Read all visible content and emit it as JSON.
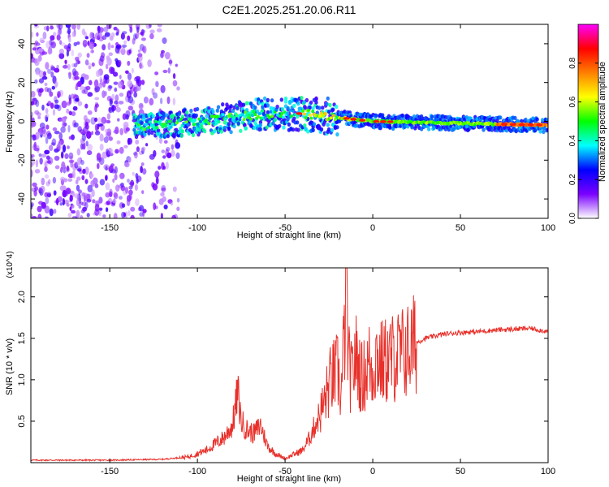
{
  "figure_title": "C2E1.2025.251.20.06.R11",
  "chart_data": [
    {
      "type": "heatmap",
      "title": "C2E1.2025.251.20.06.R11",
      "xlabel": "Height of straight line (km)",
      "ylabel": "Frequency (Hz)",
      "xlim": [
        -195,
        100
      ],
      "ylim": [
        -50,
        50
      ],
      "x_ticks": [
        -150,
        -100,
        -50,
        0,
        50,
        100
      ],
      "x_tick_labels": [
        "-150",
        "-100",
        "-50",
        "0",
        "50",
        "100"
      ],
      "y_ticks": [
        -40,
        -20,
        0,
        20,
        40
      ],
      "y_tick_labels": [
        "-40",
        "-20",
        "0",
        "20",
        "40"
      ],
      "grid": false,
      "colorbar": {
        "label": "Normalized spectral amplitude",
        "range": [
          0,
          1
        ],
        "ticks": [
          0.0,
          0.2,
          0.4,
          0.6,
          0.8
        ],
        "tick_labels": [
          "0.0",
          "0.2",
          "0.4",
          "0.6",
          "0.8"
        ],
        "colormap": [
          "#ffffff",
          "#7a00ff",
          "#0000ff",
          "#00ffff",
          "#00ff00",
          "#ffff00",
          "#ff8000",
          "#ff0000",
          "#ff00ff"
        ]
      },
      "ridge": {
        "description_points_km": [
          -135,
          -100,
          -60,
          -40,
          -20,
          0,
          50,
          100
        ],
        "center_freq_hz": [
          -3,
          0,
          4,
          4,
          2,
          0,
          -1,
          -2
        ]
      }
    },
    {
      "type": "line",
      "xlabel": "Height of straight line (km)",
      "ylabel": "SNR (10 * v/v)",
      "y_multiplier_label": "(x10^4)",
      "xlim": [
        -195,
        100
      ],
      "ylim": [
        0,
        2.35
      ],
      "x_ticks": [
        -150,
        -100,
        -50,
        0,
        50,
        100
      ],
      "x_tick_labels": [
        "-150",
        "-100",
        "-50",
        "0",
        "50",
        "100"
      ],
      "y_ticks": [
        0.5,
        1.0,
        1.5,
        2.0
      ],
      "y_tick_labels": [
        "0.5",
        "1.0",
        "1.5",
        "2.0"
      ],
      "grid": false,
      "series": [
        {
          "name": "SNR",
          "color": "#e8302a",
          "x": [
            -195,
            -150,
            -120,
            -105,
            -95,
            -85,
            -80,
            -77,
            -75,
            -72,
            -68,
            -64,
            -60,
            -55,
            -50,
            -45,
            -40,
            -36,
            -32,
            -28,
            -24,
            -20,
            -18,
            -16,
            -15,
            -14,
            -12,
            -10,
            -6,
            -2,
            0,
            2,
            5,
            10,
            15,
            20,
            25,
            30,
            40,
            50,
            60,
            70,
            80,
            90,
            95,
            100
          ],
          "values": [
            0.03,
            0.03,
            0.04,
            0.07,
            0.15,
            0.3,
            0.45,
            0.85,
            0.5,
            0.4,
            0.35,
            0.45,
            0.2,
            0.1,
            0.05,
            0.1,
            0.15,
            0.3,
            0.5,
            0.7,
            1.0,
            1.1,
            0.8,
            1.6,
            2.3,
            1.2,
            1.0,
            1.3,
            1.0,
            1.2,
            1.1,
            1.3,
            1.2,
            1.25,
            1.3,
            1.35,
            1.45,
            1.5,
            1.55,
            1.57,
            1.58,
            1.6,
            1.61,
            1.62,
            1.6,
            1.58
          ]
        }
      ]
    }
  ]
}
